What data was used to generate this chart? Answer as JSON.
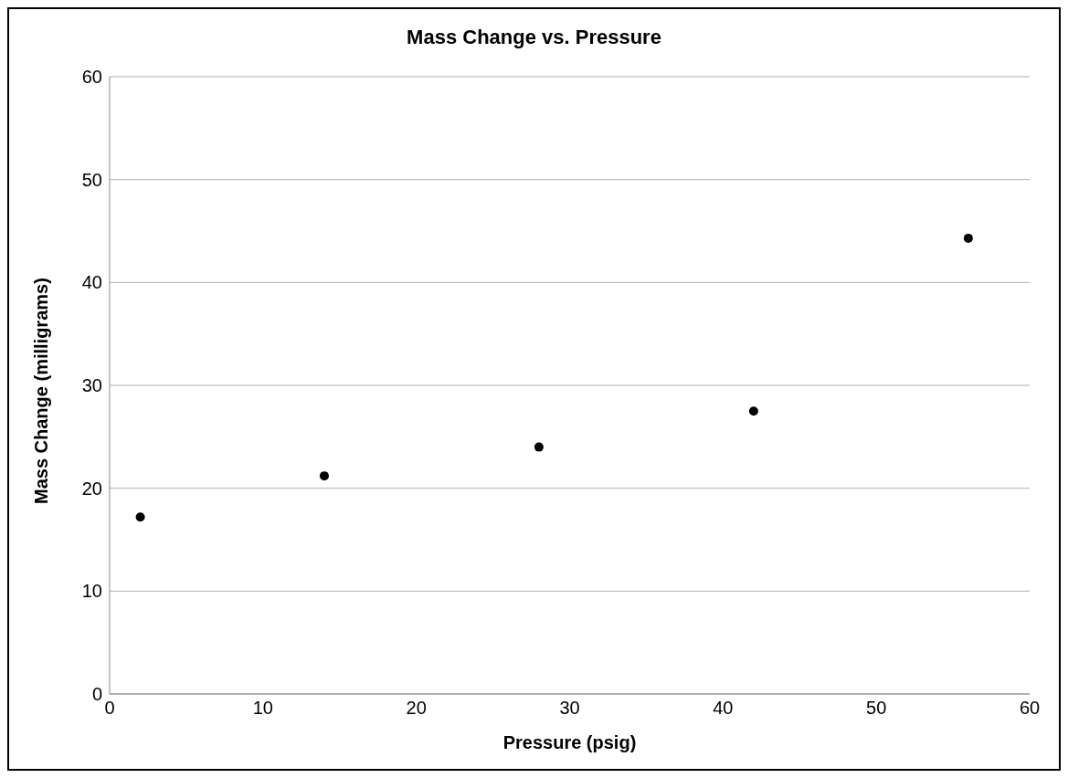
{
  "chart_data": {
    "type": "scatter",
    "title": "Mass Change vs. Pressure",
    "xlabel": "Pressure (psig)",
    "ylabel": "Mass Change (milligrams)",
    "x": [
      2,
      14,
      28,
      42,
      56
    ],
    "series": [
      {
        "color": "#000000",
        "values": [
          17.2,
          21.2,
          24.0,
          27.5,
          44.3
        ]
      }
    ],
    "xlim": [
      0,
      60
    ],
    "xticks": [
      0,
      10,
      20,
      30,
      40,
      50,
      60
    ],
    "ylim": [
      0,
      60
    ],
    "yticks": [
      0,
      10,
      20,
      30,
      40,
      50,
      60
    ],
    "grid": "y",
    "marker": "circle",
    "legend": false
  }
}
